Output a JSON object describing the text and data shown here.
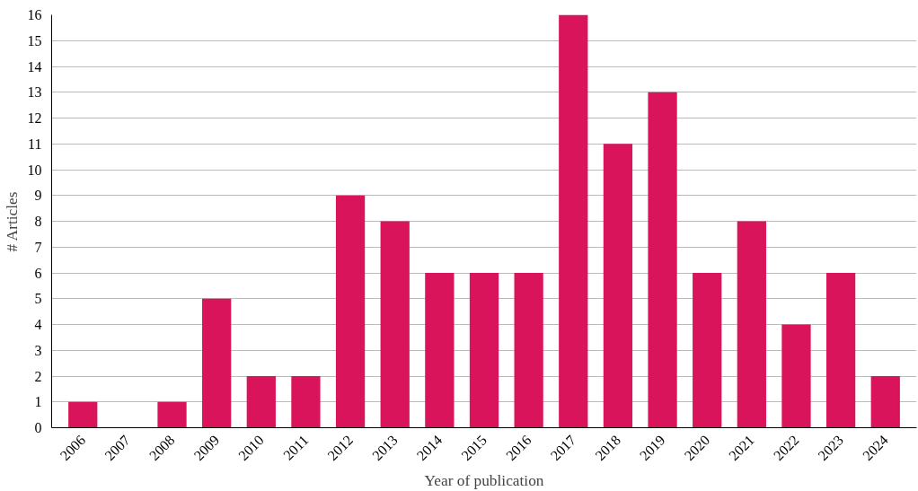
{
  "chart_data": {
    "type": "bar",
    "xlabel": "Year of publication",
    "ylabel": "# Articles",
    "categories": [
      "2006",
      "2007",
      "2008",
      "2009",
      "2010",
      "2011",
      "2012",
      "2013",
      "2014",
      "2015",
      "2016",
      "2017",
      "2018",
      "2019",
      "2020",
      "2021",
      "2022",
      "2023",
      "2024"
    ],
    "values": [
      1,
      0,
      1,
      5,
      2,
      2,
      9,
      8,
      6,
      6,
      6,
      16,
      11,
      13,
      6,
      8,
      4,
      6,
      2
    ],
    "color": "#da145a",
    "ylim": [
      0,
      16
    ],
    "yticks": [
      0,
      1,
      2,
      3,
      4,
      5,
      6,
      7,
      8,
      9,
      10,
      11,
      12,
      13,
      14,
      15,
      16
    ],
    "grid": "y"
  }
}
